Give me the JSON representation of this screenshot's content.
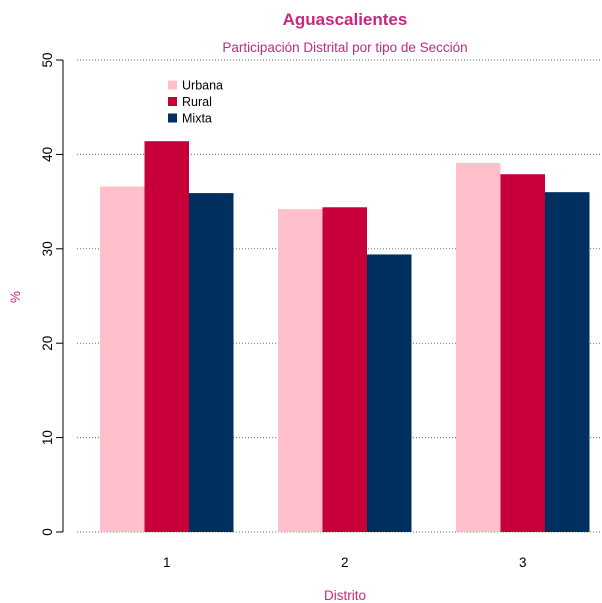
{
  "colors": {
    "accent": "#c8287f",
    "urbana": "#ffc0cb",
    "rural": "#c8003a",
    "mixta": "#00305f",
    "grid": "#6f6f6f"
  },
  "chart_data": {
    "type": "bar",
    "title": "Aguascalientes",
    "subtitle": "Participación Distrital por tipo de Sección",
    "xlabel": "Distrito",
    "ylabel": "%",
    "categories": [
      "1",
      "2",
      "3"
    ],
    "series": [
      {
        "name": "Urbana",
        "color": "#ffc0cb",
        "values": [
          36.6,
          34.2,
          39.1
        ]
      },
      {
        "name": "Rural",
        "color": "#c8003a",
        "values": [
          41.4,
          34.4,
          37.9
        ]
      },
      {
        "name": "Mixta",
        "color": "#00305f",
        "values": [
          35.9,
          29.4,
          36.0
        ]
      }
    ],
    "ylim": [
      0,
      50
    ],
    "yticks": [
      0,
      10,
      20,
      30,
      40,
      50
    ],
    "grid": "horizontal dotted",
    "legend": "top-left"
  }
}
